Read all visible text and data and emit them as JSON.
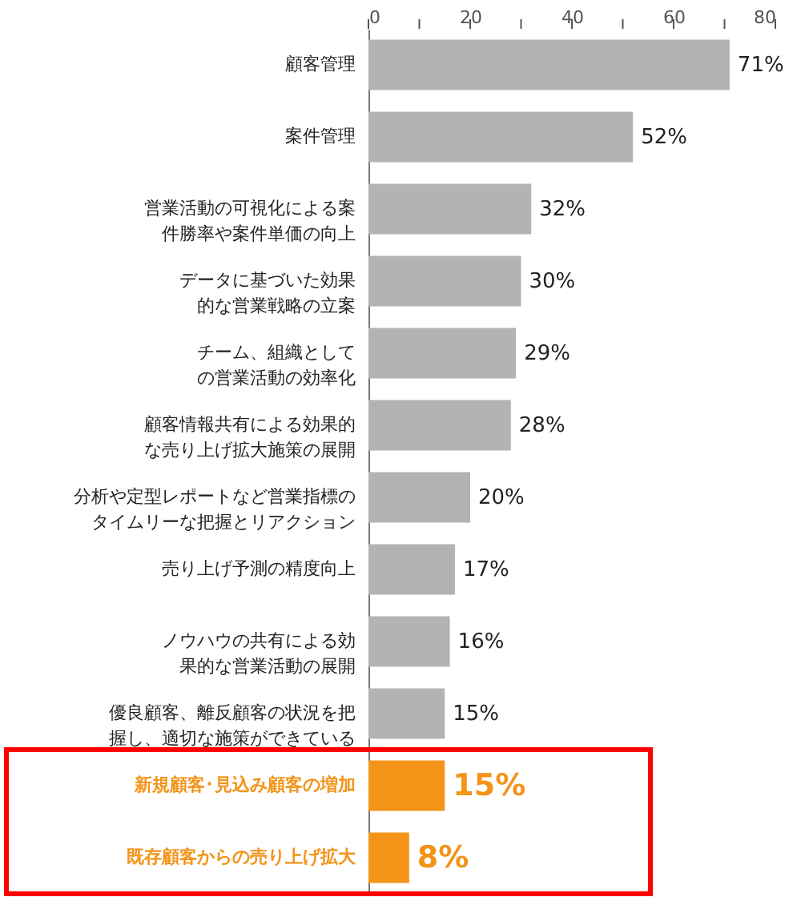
{
  "chart_data": {
    "type": "bar",
    "orientation": "horizontal",
    "categories": [
      "顧客管理",
      "案件管理",
      "営業活動の可視化による案件勝率や案件単価の向上",
      "データに基づいた効果的な営業戦略の立案",
      "チーム、組織としての営業活動の効率化",
      "顧客情報共有による効果的な売り上げ拡大施策の展開",
      "分析や定型レポートなど営業指標のタイムリーな把握とリアクション",
      "売り上げ予測の精度向上",
      "ノウハウの共有による効果的な営業活動の展開",
      "優良顧客、離反顧客の状況を把握し、適切な施策ができている",
      "新規顧客･見込み顧客の増加",
      "既存顧客からの売り上げ拡大"
    ],
    "values": [
      71,
      52,
      32,
      30,
      29,
      28,
      20,
      17,
      16,
      15,
      15,
      8
    ],
    "colors": [
      "#b3b3b3",
      "#b3b3b3",
      "#b3b3b3",
      "#b3b3b3",
      "#b3b3b3",
      "#b3b3b3",
      "#b3b3b3",
      "#b3b3b3",
      "#b3b3b3",
      "#b3b3b3",
      "#f39419",
      "#f39419"
    ],
    "value_labels": [
      "71%",
      "52%",
      "32%",
      "30%",
      "29%",
      "28%",
      "20%",
      "17%",
      "16%",
      "15%",
      "15%",
      "8%"
    ],
    "xlim": [
      0,
      80
    ],
    "xticks": [
      0,
      {
        "value": 10,
        "label": null
      },
      20,
      {
        "value": 30,
        "label": null
      },
      40,
      {
        "value": 50,
        "label": null
      },
      60,
      {
        "value": 70,
        "label": null
      },
      80
    ],
    "grid": false
  }
}
